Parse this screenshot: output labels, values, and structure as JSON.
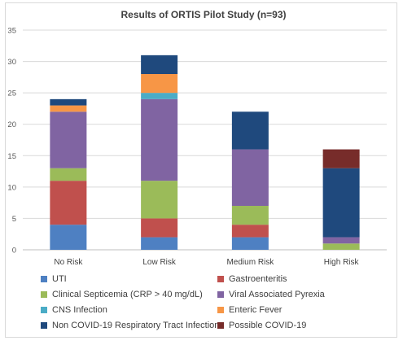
{
  "chart_data": {
    "type": "bar",
    "stacked": true,
    "title": "Results of ORTIS Pilot Study (n=93)",
    "xlabel": "",
    "ylabel": "",
    "ylim": [
      0,
      35
    ],
    "yticks": [
      0,
      5,
      10,
      15,
      20,
      25,
      30,
      35
    ],
    "grid": true,
    "legend_position": "bottom",
    "categories": [
      "No Risk",
      "Low Risk",
      "Medium Risk",
      "High Risk"
    ],
    "series": [
      {
        "name": "UTI",
        "color": "#4e80c2",
        "values": [
          4,
          2,
          2,
          0
        ]
      },
      {
        "name": "Gastroenteritis",
        "color": "#c0504d",
        "values": [
          7,
          3,
          2,
          0
        ]
      },
      {
        "name": "Clinical Septicemia (CRP > 40 mg/dL)",
        "color": "#9bbb59",
        "values": [
          2,
          6,
          3,
          1
        ]
      },
      {
        "name": "Viral Associated Pyrexia",
        "color": "#8064a2",
        "values": [
          9,
          13,
          9,
          1
        ]
      },
      {
        "name": "CNS Infection",
        "color": "#4bacc6",
        "values": [
          0,
          1,
          0,
          0
        ]
      },
      {
        "name": "Enteric Fever",
        "color": "#f79646",
        "values": [
          1,
          3,
          0,
          0
        ]
      },
      {
        "name": "Non COVID-19 Respiratory Tract Infection",
        "color": "#1f497d",
        "values": [
          1,
          3,
          6,
          11
        ]
      },
      {
        "name": "Possible COVID-19",
        "color": "#772c2a",
        "values": [
          0,
          0,
          0,
          3
        ]
      }
    ]
  }
}
